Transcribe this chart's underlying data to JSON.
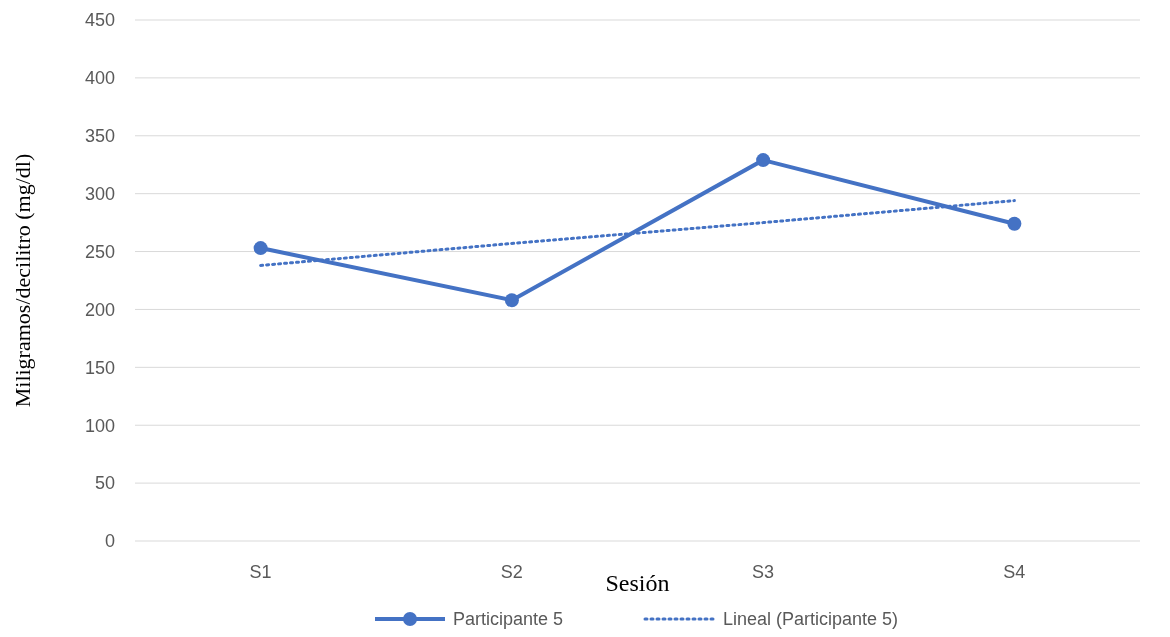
{
  "chart_data": {
    "type": "line",
    "xlabel": "Sesión",
    "ylabel": "Miligramos/decilitro (mg/dl)",
    "categories": [
      "S1",
      "S2",
      "S3",
      "S4"
    ],
    "series": [
      {
        "name": "Participante 5",
        "color": "#4472c4",
        "values": [
          253,
          208,
          329,
          274
        ],
        "marker": "circle",
        "line_style": "solid"
      },
      {
        "name": "Lineal (Participante 5)",
        "color": "#4472c4",
        "values": [
          238,
          257,
          275,
          294
        ],
        "marker": "none",
        "line_style": "dotted"
      }
    ],
    "ylim": [
      0,
      450
    ],
    "yticks": [
      0,
      50,
      100,
      150,
      200,
      250,
      300,
      350,
      400,
      450
    ],
    "grid": "y",
    "legend": "bottom"
  }
}
